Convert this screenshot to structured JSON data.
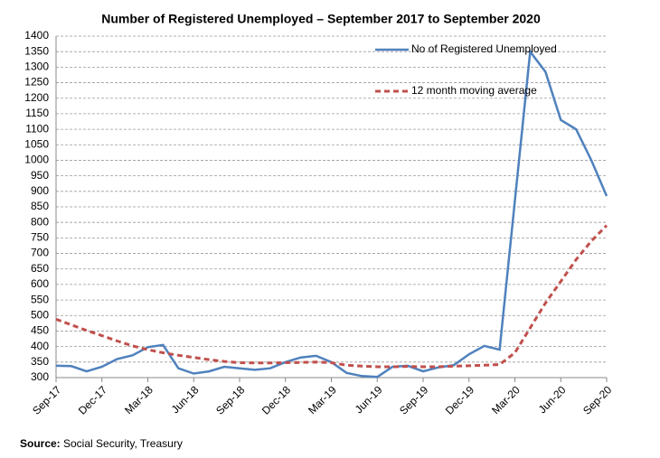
{
  "chart_data": {
    "type": "line",
    "title": "Number of Registered Unemployed – September 2017 to September 2020",
    "categories": [
      "Sep-17",
      null,
      null,
      "Dec-17",
      null,
      null,
      "Mar-18",
      null,
      null,
      "Jun-18",
      null,
      null,
      "Sep-18",
      null,
      null,
      "Dec-18",
      null,
      null,
      "Mar-19",
      null,
      null,
      "Jun-19",
      null,
      null,
      "Sep-19",
      null,
      null,
      "Dec-19",
      null,
      null,
      "Mar-20",
      null,
      null,
      "Jun-20",
      null,
      null,
      "Sep-20"
    ],
    "series": [
      {
        "name": "No of Registered Unemployed",
        "color": "#4f81bd",
        "dashed": false,
        "values": [
          338,
          337,
          320,
          335,
          360,
          372,
          398,
          405,
          330,
          313,
          320,
          335,
          330,
          325,
          330,
          350,
          365,
          370,
          350,
          315,
          305,
          302,
          335,
          338,
          320,
          333,
          340,
          375,
          402,
          390,
          870,
          1350,
          1285,
          1130,
          1100,
          1000,
          885
        ]
      },
      {
        "name": "12 month moving average",
        "color": "#c0504d",
        "dashed": true,
        "values": [
          488,
          470,
          452,
          435,
          418,
          402,
          390,
          380,
          372,
          365,
          358,
          352,
          348,
          347,
          347,
          348,
          349,
          350,
          348,
          340,
          337,
          335,
          335,
          336,
          335,
          335,
          337,
          338,
          340,
          342,
          380,
          460,
          540,
          610,
          680,
          740,
          790
        ]
      }
    ],
    "ylim": [
      300,
      1400
    ],
    "yticks": [
      300,
      350,
      400,
      450,
      500,
      550,
      600,
      650,
      700,
      750,
      800,
      850,
      900,
      950,
      1000,
      1050,
      1100,
      1150,
      1200,
      1250,
      1300,
      1350,
      1400
    ],
    "grid": true,
    "source_label": "Source:",
    "source": "Social Security, Treasury"
  }
}
